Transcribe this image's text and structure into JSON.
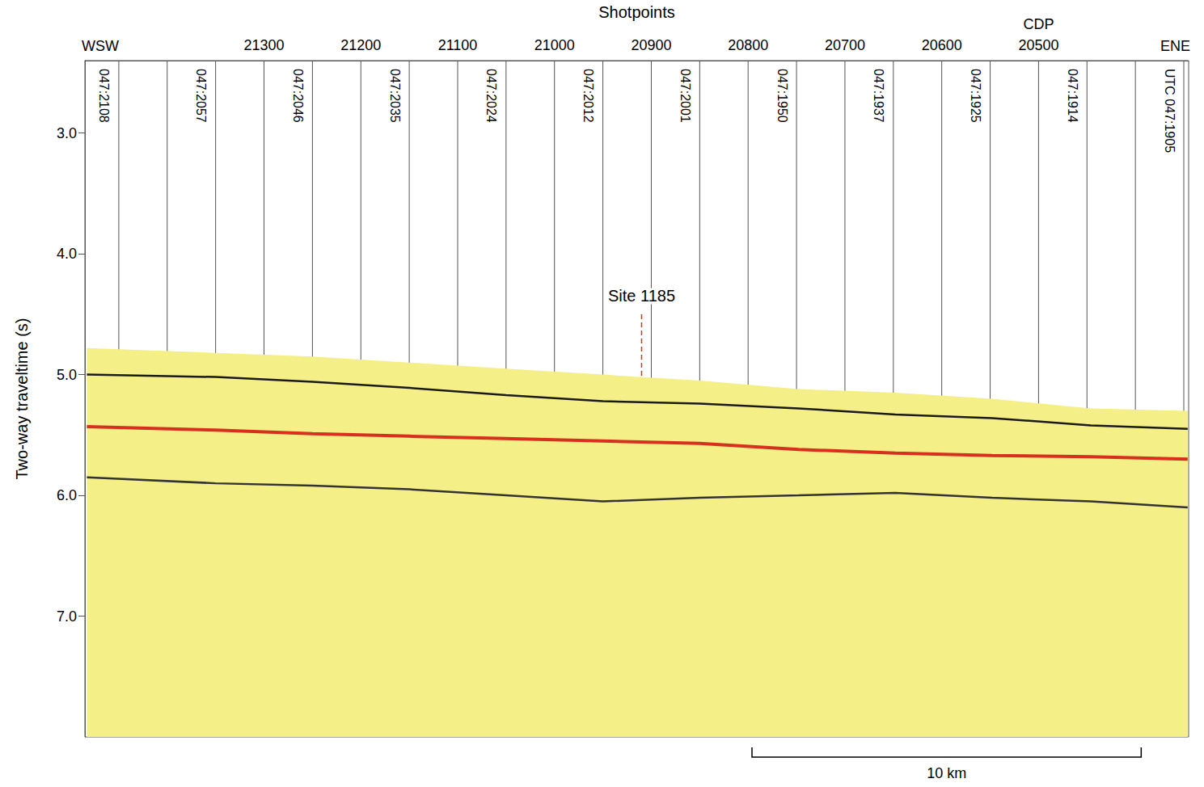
{
  "chart_data": {
    "type": "seismic_section",
    "x_label": "Shotpoints",
    "y_label": "Two-way traveltime (s)",
    "xlim": [
      21485,
      20345
    ],
    "xticks": [
      21300,
      21200,
      21100,
      21000,
      20900,
      20800,
      20700,
      20600,
      20500
    ],
    "ylim": [
      2.4,
      8.0
    ],
    "yticks": [
      {
        "value": 3,
        "label": "3.0"
      },
      {
        "value": 4,
        "label": "4.0"
      },
      {
        "value": 5,
        "label": "5.0"
      },
      {
        "value": 6,
        "label": "6.0"
      },
      {
        "value": 7,
        "label": "7.0"
      }
    ],
    "grid": false,
    "x": [
      21483,
      21350,
      21250,
      21150,
      21050,
      20950,
      20850,
      20748,
      20648,
      20548,
      20446,
      20346
    ],
    "series": [
      {
        "type": "area",
        "color": "#f4ef86",
        "values": [
          4.78,
          4.82,
          4.85,
          4.9,
          4.95,
          5.0,
          5.05,
          5.12,
          5.15,
          5.2,
          5.28,
          5.3
        ]
      },
      {
        "type": "line",
        "color": "#1a1a1a",
        "values": [
          5.0,
          5.02,
          5.06,
          5.11,
          5.17,
          5.22,
          5.24,
          5.28,
          5.33,
          5.36,
          5.42,
          5.45
        ]
      },
      {
        "type": "line",
        "color": "#d7301f",
        "values": [
          5.43,
          5.46,
          5.49,
          5.51,
          5.53,
          5.55,
          5.57,
          5.62,
          5.65,
          5.67,
          5.68,
          5.7
        ]
      },
      {
        "type": "line",
        "color": "#333333",
        "values": [
          5.85,
          5.9,
          5.92,
          5.95,
          6.0,
          6.05,
          6.02,
          6.0,
          5.98,
          6.02,
          6.05,
          6.1
        ]
      }
    ],
    "time_marks": {
      "x": [
        21450,
        21400,
        21350,
        21300,
        21250,
        21200,
        21150,
        21100,
        21050,
        21000,
        20950,
        20900,
        20850,
        20800,
        20750,
        20700,
        20650,
        20600,
        20550,
        20500,
        20450,
        20400,
        20350
      ],
      "labels": [
        "047:2108",
        null,
        "047:2057",
        null,
        "047:2046",
        null,
        "047:2035",
        null,
        "047:2024",
        null,
        "047:2012",
        null,
        "047:2001",
        null,
        "047:1950",
        null,
        "047:1937",
        null,
        "047:1925",
        null,
        "047:1914",
        null,
        "UTC 047:1905"
      ]
    },
    "site": {
      "label": "Site 1185",
      "x": 20910,
      "y": 4.35,
      "y_top": 4.5,
      "color": "#d7301f",
      "line_style": "dashed"
    },
    "cdp": {
      "label": "CDP",
      "x": 20500
    },
    "directions": {
      "left": "WSW",
      "right": "ENE"
    },
    "scale_bar": {
      "label": "10 km",
      "x": [
        20796,
        20394
      ]
    }
  }
}
